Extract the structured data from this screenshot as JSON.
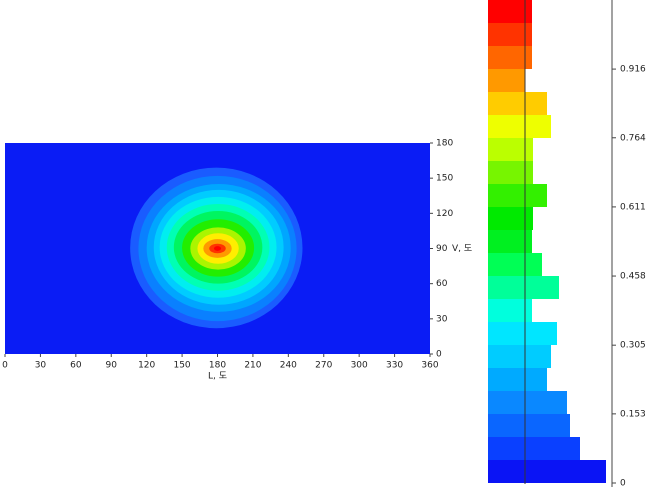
{
  "chart_data": [
    {
      "type": "contour",
      "x_label": "L, 도",
      "y_label": "V, 도",
      "xlim": [
        0,
        360
      ],
      "ylim": [
        0,
        180
      ],
      "xticks": [
        0,
        30,
        60,
        90,
        120,
        150,
        180,
        210,
        240,
        270,
        300,
        330,
        360
      ],
      "yticks": [
        0,
        30,
        60,
        90,
        120,
        150,
        180
      ],
      "background": "#0a1cf5",
      "rings": [
        {
          "color": "#1a5cff",
          "x": [
            106,
            252
          ],
          "y": [
            22,
            159
          ]
        },
        {
          "color": "#0a80ff",
          "x": [
            113,
            247
          ],
          "y": [
            28,
            152
          ]
        },
        {
          "color": "#00a6ff",
          "x": [
            120,
            242
          ],
          "y": [
            36,
            145
          ]
        },
        {
          "color": "#00ccff",
          "x": [
            126,
            236
          ],
          "y": [
            42,
            140
          ]
        },
        {
          "color": "#00eef0",
          "x": [
            131,
            230
          ],
          "y": [
            48,
            134
          ]
        },
        {
          "color": "#00ffb4",
          "x": [
            137,
            224
          ],
          "y": [
            54,
            128
          ]
        },
        {
          "color": "#00f560",
          "x": [
            143,
            218
          ],
          "y": [
            60,
            122
          ]
        },
        {
          "color": "#22ee00",
          "x": [
            150,
            211
          ],
          "y": [
            66,
            115
          ]
        },
        {
          "color": "#aaf500",
          "x": [
            157,
            204
          ],
          "y": [
            72,
            108
          ]
        },
        {
          "color": "#ffee00",
          "x": [
            163,
            198
          ],
          "y": [
            77,
            103
          ]
        },
        {
          "color": "#ff9900",
          "x": [
            168,
            192
          ],
          "y": [
            82,
            98
          ]
        },
        {
          "color": "#ff3300",
          "x": [
            173,
            187
          ],
          "y": [
            86,
            94
          ]
        },
        {
          "color": "#ff0000",
          "x": [
            177,
            183
          ],
          "y": [
            88,
            92
          ]
        }
      ]
    },
    {
      "type": "histogram",
      "orientation": "horizontal",
      "bins": [
        0,
        0.0509,
        0.1018,
        0.1527,
        0.2036,
        0.2545,
        0.3054,
        0.3563,
        0.4072,
        0.4581,
        0.509,
        0.5599,
        0.6108,
        0.6617,
        0.7126,
        0.7635,
        0.8144,
        0.8653,
        0.9162,
        0.9671,
        1.018,
        1.0689
      ],
      "values": [
        118,
        92,
        82,
        79,
        59,
        63,
        69,
        44,
        71,
        54,
        44,
        45,
        59,
        45,
        45,
        63,
        59,
        37,
        44,
        44,
        44
      ],
      "colors": [
        "#0a14f5",
        "#0a40ff",
        "#0a66ff",
        "#0a88ff",
        "#00aaff",
        "#00ccff",
        "#00e6ff",
        "#00ffdd",
        "#00ff99",
        "#00ff55",
        "#00f020",
        "#00ea00",
        "#33f000",
        "#77f500",
        "#bbff00",
        "#eeff00",
        "#ffcc00",
        "#ff9900",
        "#ff6600",
        "#ff3300",
        "#ff0000"
      ],
      "ylim": [
        0,
        1.0689
      ],
      "yticks": [
        0,
        0.153,
        0.305,
        0.458,
        0.611,
        0.764,
        0.916
      ]
    }
  ]
}
